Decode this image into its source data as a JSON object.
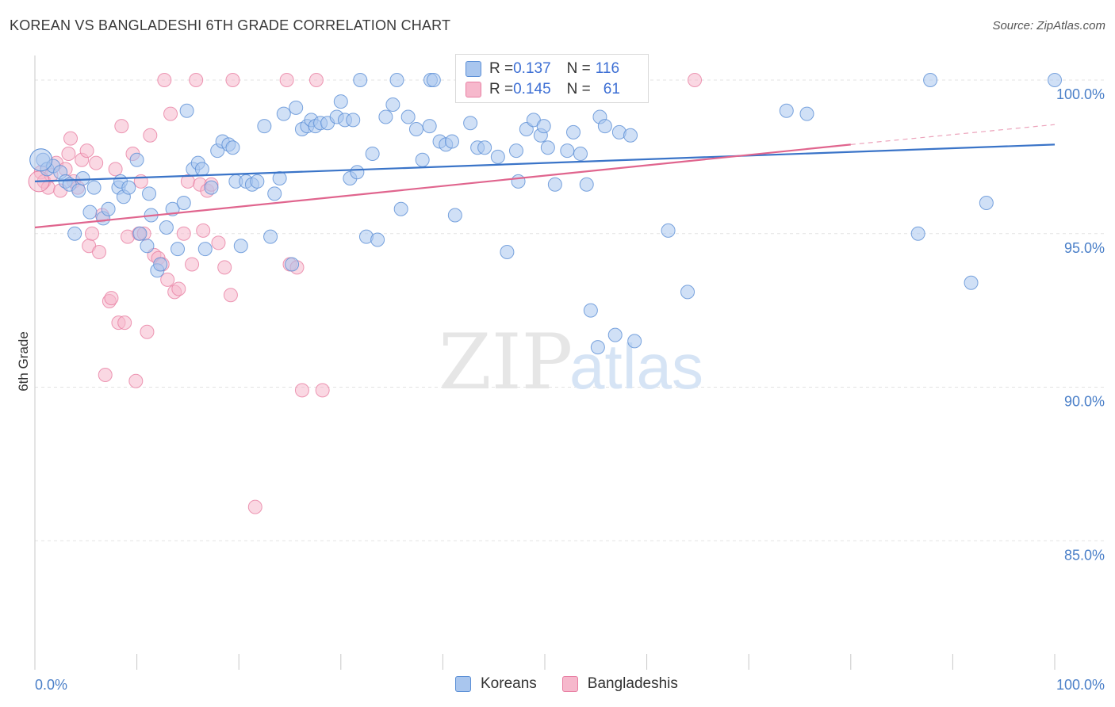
{
  "header": {
    "title": "KOREAN VS BANGLADESHI 6TH GRADE CORRELATION CHART",
    "source": "Source: ZipAtlas.com"
  },
  "watermark": {
    "zip": "ZIP",
    "atlas": "atlas"
  },
  "colors": {
    "blue_fill": "#a9c6ee",
    "blue_stroke": "#5b8fd6",
    "blue_line": "#3a74c8",
    "pink_fill": "#f6b8cc",
    "pink_stroke": "#e87fa3",
    "pink_line": "#e0658e",
    "tick_text": "#4a7fc8",
    "grid": "#e3e3e3"
  },
  "legend_top": {
    "rows": [
      {
        "r_label": "R = ",
        "r_value": "0.137",
        "n_label": "N = ",
        "n_value": "116",
        "series": "blue"
      },
      {
        "r_label": "R = ",
        "r_value": "0.145",
        "n_label": "N = ",
        "n_value": "61",
        "series": "pink"
      }
    ]
  },
  "legend_bottom": {
    "items": [
      {
        "label": "Koreans",
        "series": "blue"
      },
      {
        "label": "Bangladeshis",
        "series": "pink"
      }
    ]
  },
  "chart_data": {
    "type": "scatter",
    "title": "KOREAN VS BANGLADESHI 6TH GRADE CORRELATION CHART",
    "xlabel": "",
    "ylabel": "6th Grade",
    "xlim": [
      0,
      100
    ],
    "ylim": [
      80.8,
      100.8
    ],
    "x_tick_labels": [
      "0.0%",
      "100.0%"
    ],
    "y_ticks": [
      85,
      90,
      95,
      100
    ],
    "y_tick_labels": [
      "85.0%",
      "90.0%",
      "95.0%",
      "100.0%"
    ],
    "grid": "horizontal dashed",
    "legend": "top-center and bottom",
    "series": [
      {
        "name": "Koreans",
        "color": "#5b8fd6",
        "trend": {
          "x": [
            0,
            100
          ],
          "y": [
            96.7,
            97.9
          ]
        },
        "points": [
          [
            0.8,
            97.4
          ],
          [
            1.2,
            97.1
          ],
          [
            1.8,
            97.2
          ],
          [
            2.5,
            97.0
          ],
          [
            3.0,
            96.7
          ],
          [
            3.4,
            96.6
          ],
          [
            4.3,
            96.4
          ],
          [
            4.7,
            96.8
          ],
          [
            3.9,
            95.0
          ],
          [
            5.4,
            95.7
          ],
          [
            5.8,
            96.5
          ],
          [
            6.7,
            95.5
          ],
          [
            7.2,
            95.8
          ],
          [
            8.2,
            96.5
          ],
          [
            8.7,
            96.2
          ],
          [
            8.4,
            96.7
          ],
          [
            9.2,
            96.5
          ],
          [
            10.0,
            97.4
          ],
          [
            10.3,
            95.0
          ],
          [
            11.0,
            94.6
          ],
          [
            11.2,
            96.3
          ],
          [
            11.4,
            95.6
          ],
          [
            12.0,
            93.8
          ],
          [
            12.3,
            94.0
          ],
          [
            12.9,
            95.2
          ],
          [
            13.5,
            95.8
          ],
          [
            14.0,
            94.5
          ],
          [
            14.6,
            96.0
          ],
          [
            14.9,
            99.0
          ],
          [
            15.5,
            97.1
          ],
          [
            16.0,
            97.3
          ],
          [
            16.4,
            97.1
          ],
          [
            16.7,
            94.5
          ],
          [
            17.3,
            96.5
          ],
          [
            17.9,
            97.7
          ],
          [
            18.4,
            98.0
          ],
          [
            19.0,
            97.9
          ],
          [
            19.4,
            97.8
          ],
          [
            19.7,
            96.7
          ],
          [
            20.2,
            94.6
          ],
          [
            20.7,
            96.7
          ],
          [
            21.3,
            96.6
          ],
          [
            21.8,
            96.7
          ],
          [
            22.5,
            98.5
          ],
          [
            23.1,
            94.9
          ],
          [
            23.5,
            96.3
          ],
          [
            24.0,
            96.8
          ],
          [
            24.4,
            98.9
          ],
          [
            25.2,
            94.0
          ],
          [
            25.6,
            99.1
          ],
          [
            26.2,
            98.4
          ],
          [
            26.7,
            98.5
          ],
          [
            27.1,
            98.7
          ],
          [
            27.5,
            98.5
          ],
          [
            28.0,
            98.6
          ],
          [
            28.7,
            98.6
          ],
          [
            29.6,
            98.8
          ],
          [
            30.0,
            99.3
          ],
          [
            30.4,
            98.7
          ],
          [
            30.9,
            96.8
          ],
          [
            31.2,
            98.7
          ],
          [
            31.6,
            97.0
          ],
          [
            31.9,
            100.0
          ],
          [
            32.5,
            94.9
          ],
          [
            33.1,
            97.6
          ],
          [
            33.6,
            94.8
          ],
          [
            34.4,
            98.8
          ],
          [
            35.1,
            99.2
          ],
          [
            35.5,
            100.0
          ],
          [
            35.9,
            95.8
          ],
          [
            36.6,
            98.8
          ],
          [
            37.4,
            98.4
          ],
          [
            38.0,
            97.4
          ],
          [
            38.7,
            98.5
          ],
          [
            38.8,
            100.0
          ],
          [
            39.1,
            100.0
          ],
          [
            39.7,
            98.0
          ],
          [
            40.3,
            97.9
          ],
          [
            40.9,
            98.0
          ],
          [
            41.2,
            95.6
          ],
          [
            42.0,
            100.0
          ],
          [
            42.7,
            98.6
          ],
          [
            43.4,
            97.8
          ],
          [
            44.1,
            97.8
          ],
          [
            45.0,
            100.0
          ],
          [
            45.4,
            97.5
          ],
          [
            46.3,
            94.4
          ],
          [
            47.2,
            97.7
          ],
          [
            47.4,
            96.7
          ],
          [
            48.2,
            98.4
          ],
          [
            48.9,
            98.7
          ],
          [
            49.6,
            98.2
          ],
          [
            49.9,
            98.5
          ],
          [
            50.3,
            97.8
          ],
          [
            51.0,
            96.6
          ],
          [
            52.2,
            97.7
          ],
          [
            52.8,
            98.3
          ],
          [
            53.5,
            97.6
          ],
          [
            54.1,
            96.6
          ],
          [
            54.5,
            92.5
          ],
          [
            55.4,
            98.8
          ],
          [
            55.9,
            98.5
          ],
          [
            55.2,
            91.3
          ],
          [
            56.9,
            91.7
          ],
          [
            57.3,
            98.3
          ],
          [
            58.4,
            98.2
          ],
          [
            58.8,
            91.5
          ],
          [
            62.1,
            95.1
          ],
          [
            64.0,
            93.1
          ],
          [
            73.7,
            99.0
          ],
          [
            75.7,
            98.9
          ],
          [
            86.6,
            95.0
          ],
          [
            87.8,
            100.0
          ],
          [
            91.8,
            93.4
          ],
          [
            93.3,
            96.0
          ],
          [
            100.0,
            100.0
          ]
        ]
      },
      {
        "name": "Bangladeshis",
        "color": "#e87fa3",
        "trend": {
          "x": [
            0,
            80
          ],
          "y": [
            95.2,
            97.9
          ]
        },
        "trend_extension": {
          "x": [
            80,
            100
          ],
          "y": [
            97.9,
            98.55
          ]
        },
        "points": [
          [
            0.6,
            97.0
          ],
          [
            0.9,
            96.7
          ],
          [
            1.3,
            96.5
          ],
          [
            1.6,
            96.9
          ],
          [
            2.1,
            97.3
          ],
          [
            2.5,
            96.4
          ],
          [
            3.0,
            97.1
          ],
          [
            3.3,
            97.6
          ],
          [
            3.5,
            98.1
          ],
          [
            3.8,
            96.7
          ],
          [
            4.2,
            96.5
          ],
          [
            4.6,
            97.4
          ],
          [
            5.1,
            97.7
          ],
          [
            5.3,
            94.6
          ],
          [
            5.6,
            95.0
          ],
          [
            6.0,
            97.3
          ],
          [
            6.3,
            94.4
          ],
          [
            6.6,
            95.6
          ],
          [
            6.9,
            90.4
          ],
          [
            7.3,
            92.8
          ],
          [
            7.5,
            92.9
          ],
          [
            7.9,
            97.1
          ],
          [
            8.2,
            92.1
          ],
          [
            8.5,
            98.5
          ],
          [
            8.8,
            92.1
          ],
          [
            9.1,
            94.9
          ],
          [
            9.6,
            97.6
          ],
          [
            9.9,
            90.2
          ],
          [
            10.2,
            95.0
          ],
          [
            10.4,
            96.7
          ],
          [
            10.7,
            95.0
          ],
          [
            11.0,
            91.8
          ],
          [
            11.3,
            98.2
          ],
          [
            11.7,
            94.3
          ],
          [
            12.1,
            94.2
          ],
          [
            12.5,
            94.0
          ],
          [
            12.7,
            100.0
          ],
          [
            13.0,
            93.5
          ],
          [
            13.3,
            98.9
          ],
          [
            13.7,
            93.1
          ],
          [
            14.1,
            93.2
          ],
          [
            14.6,
            95.0
          ],
          [
            15.0,
            96.7
          ],
          [
            15.4,
            94.0
          ],
          [
            15.8,
            100.0
          ],
          [
            16.2,
            96.6
          ],
          [
            16.5,
            95.1
          ],
          [
            16.9,
            96.4
          ],
          [
            17.3,
            96.6
          ],
          [
            18.0,
            94.7
          ],
          [
            18.6,
            93.9
          ],
          [
            19.2,
            93.0
          ],
          [
            19.4,
            100.0
          ],
          [
            21.6,
            86.1
          ],
          [
            24.7,
            100.0
          ],
          [
            25.0,
            94.0
          ],
          [
            25.7,
            93.9
          ],
          [
            26.2,
            89.9
          ],
          [
            27.6,
            100.0
          ],
          [
            28.2,
            89.9
          ],
          [
            64.7,
            100.0
          ]
        ]
      }
    ]
  }
}
